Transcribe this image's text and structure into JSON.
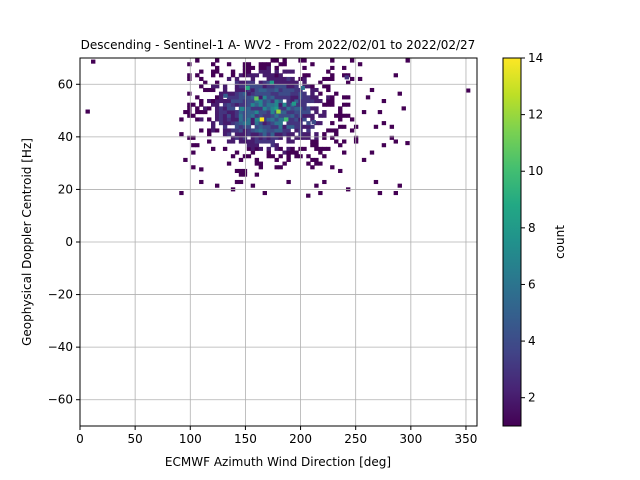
{
  "chart_data": {
    "type": "heatmap",
    "title": "Descending - Sentinel-1 A- WV2 - From 2022/02/01 to 2022/02/27",
    "xlabel": "ECMWF Azimuth Wind Direction [deg]",
    "ylabel": "Geophysical Doppler Centroid [Hz]",
    "xlim": [
      0,
      360
    ],
    "ylim": [
      -70,
      70
    ],
    "xticks": [
      0,
      50,
      100,
      150,
      200,
      250,
      300,
      350
    ],
    "yticks": [
      -60,
      -40,
      -20,
      0,
      20,
      40,
      60
    ],
    "grid": true,
    "colormap": "viridis",
    "colorbar": {
      "label": "count",
      "min": 1,
      "max": 14,
      "ticks": [
        2,
        4,
        6,
        8,
        10,
        12,
        14
      ]
    },
    "bin_size": {
      "x": 3.6,
      "y": 1.4
    },
    "cloud": {
      "x_range": [
        90,
        300
      ],
      "y_range": [
        18,
        70
      ],
      "dense_center": {
        "x": 170,
        "y": 50
      }
    },
    "points": [
      {
        "x": 163,
        "y": 46,
        "count": 14
      },
      {
        "x": 178,
        "y": 49,
        "count": 12
      },
      {
        "x": 158,
        "y": 54,
        "count": 11
      },
      {
        "x": 185,
        "y": 46,
        "count": 10
      },
      {
        "x": 150,
        "y": 58,
        "count": 9
      },
      {
        "x": 172,
        "y": 60,
        "count": 8
      },
      {
        "x": 192,
        "y": 52,
        "count": 8
      },
      {
        "x": 145,
        "y": 50,
        "count": 7
      },
      {
        "x": 200,
        "y": 58,
        "count": 6
      },
      {
        "x": 130,
        "y": 55,
        "count": 5
      },
      {
        "x": 210,
        "y": 45,
        "count": 4
      },
      {
        "x": 240,
        "y": 62,
        "count": 3
      },
      {
        "x": 205,
        "y": 17,
        "count": 1
      },
      {
        "x": 108,
        "y": 27,
        "count": 1
      },
      {
        "x": 10,
        "y": 68,
        "count": 1
      },
      {
        "x": 5,
        "y": 49,
        "count": 1
      },
      {
        "x": 295,
        "y": 37,
        "count": 1
      },
      {
        "x": 350,
        "y": 57,
        "count": 1
      }
    ]
  }
}
